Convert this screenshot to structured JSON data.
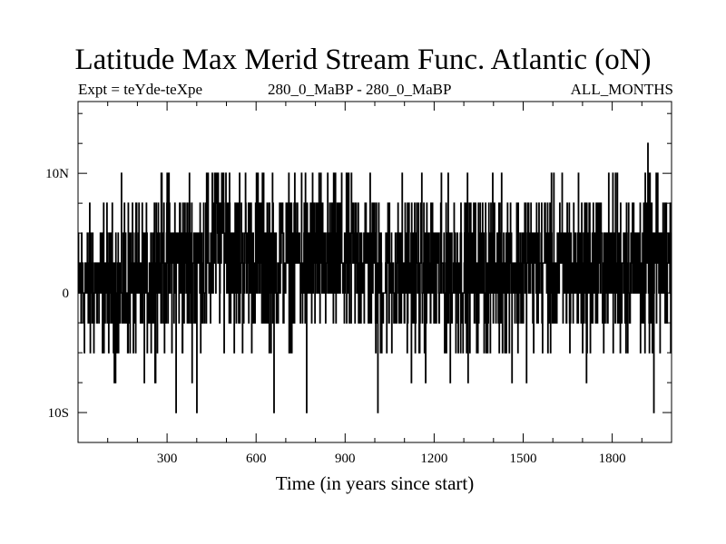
{
  "chart_data": {
    "type": "line",
    "title": "Latitude Max Merid Stream Func. Atlantic (oN)",
    "subtitle_left": "Expt = teYde-teXpe",
    "subtitle_center": "280_0_MaBP - 280_0_MaBP",
    "subtitle_right": "ALL_MONTHS",
    "xlabel": "Time (in years since start)",
    "ylabel": "",
    "xlim": [
      0,
      2000
    ],
    "ylim": [
      -12.5,
      16
    ],
    "xticks": [
      300,
      600,
      900,
      1200,
      1500,
      1800
    ],
    "xtick_labels": [
      "300",
      "600",
      "900",
      "1200",
      "1500",
      "1800"
    ],
    "yticks": [
      -10,
      0,
      10
    ],
    "ytick_labels": [
      "10S",
      "0",
      "10N"
    ],
    "levels": [
      -10,
      -7.5,
      -5,
      -2.5,
      0,
      2.5,
      5,
      7.5,
      10,
      12.5
    ],
    "step_years": 1,
    "segments": [
      {
        "start": 0,
        "end": 250,
        "mean": 0.6,
        "spread": 3.2
      },
      {
        "start": 250,
        "end": 450,
        "mean": 2.6,
        "spread": 3.6
      },
      {
        "start": 450,
        "end": 520,
        "mean": 5.0,
        "spread": 3.8
      },
      {
        "start": 520,
        "end": 1000,
        "mean": 2.9,
        "spread": 3.5
      },
      {
        "start": 1000,
        "end": 1400,
        "mean": 1.6,
        "spread": 3.4
      },
      {
        "start": 1400,
        "end": 1800,
        "mean": 2.1,
        "spread": 3.4
      },
      {
        "start": 1800,
        "end": 2000,
        "mean": 2.4,
        "spread": 3.6
      }
    ],
    "extremes": [
      {
        "x": 330,
        "y": -10
      },
      {
        "x": 400,
        "y": -10
      },
      {
        "x": 660,
        "y": -10
      },
      {
        "x": 770,
        "y": -10
      },
      {
        "x": 1010,
        "y": -10
      },
      {
        "x": 1920,
        "y": 12.5
      },
      {
        "x": 1940,
        "y": -10
      }
    ]
  }
}
